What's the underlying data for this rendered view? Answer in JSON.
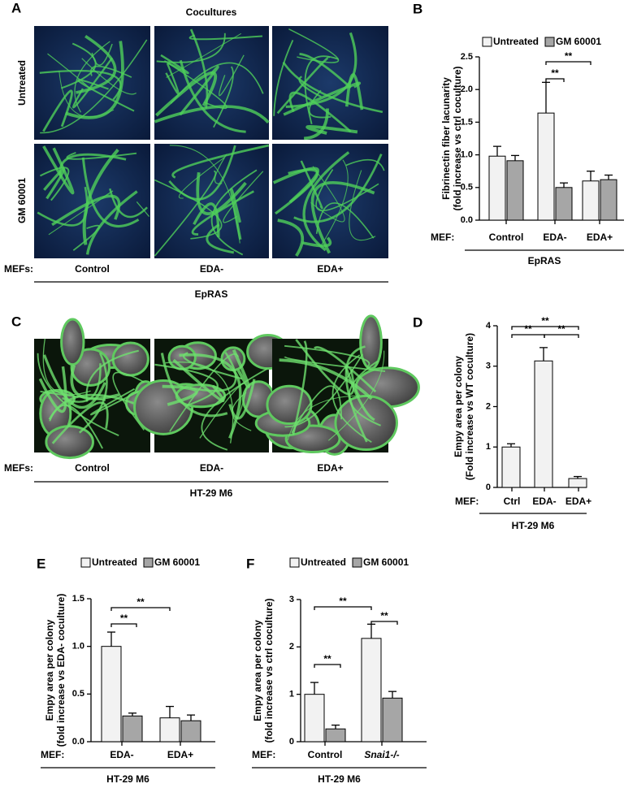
{
  "panel_a": {
    "letter": "A",
    "title": "Cocultures",
    "rows": [
      "Untreated",
      "GM 60001"
    ],
    "xlabel": "MEFs:",
    "columns": [
      "Control",
      "EDA-",
      "EDA+"
    ],
    "group": "EpRAS"
  },
  "panel_c": {
    "letter": "C",
    "xlabel": "MEFs:",
    "columns": [
      "Control",
      "EDA-",
      "EDA+"
    ],
    "group": "HT-29 M6"
  },
  "chart_data": [
    {
      "type": "bar",
      "letter": "B",
      "ylabel": [
        "Fibrinectin fiber lacunarity",
        "(fold increase vs ctrl coculture)"
      ],
      "xlabel": "MEF:",
      "categories": [
        "Control",
        "EDA-",
        "EDA+"
      ],
      "group": "EpRAS",
      "series": [
        {
          "name": "Untreated",
          "color": "#f2f2f2",
          "values": [
            0.98,
            1.64,
            0.6
          ],
          "errors": [
            0.15,
            0.47,
            0.15
          ]
        },
        {
          "name": "GM 60001",
          "color": "#a6a6a6",
          "values": [
            0.91,
            0.5,
            0.62
          ],
          "errors": [
            0.08,
            0.07,
            0.07
          ]
        }
      ],
      "ylim": [
        0,
        2.5
      ],
      "yticks": [
        {
          "value": 0,
          "label": "0.0"
        },
        0.5,
        {
          "value": 1,
          "label": "1.0"
        },
        1.5,
        {
          "value": 2,
          "label": "2.0"
        },
        2.5
      ],
      "annotations": [
        "**",
        "**"
      ]
    },
    {
      "type": "bar",
      "letter": "D",
      "ylabel": [
        "Empy area per colony",
        "(Fold increase vs WT coculture)"
      ],
      "xlabel": "MEF:",
      "categories": [
        "Ctrl",
        "EDA-",
        "EDA+"
      ],
      "group": "HT-29 M6",
      "series": [
        {
          "color": "#f2f2f2",
          "values": [
            1.0,
            3.13,
            0.22
          ],
          "errors": [
            0.08,
            0.33,
            0.05
          ]
        }
      ],
      "ylim": [
        0,
        4
      ],
      "yticks": [
        0,
        1,
        2,
        3,
        4
      ],
      "annotations": [
        "**",
        "**",
        "**"
      ]
    },
    {
      "type": "bar",
      "letter": "E",
      "ylabel": [
        "Empy area per colony",
        "(fold increase vs EDA- coculture)"
      ],
      "xlabel": "MEF:",
      "categories": [
        "EDA-",
        "EDA+"
      ],
      "group": "HT-29 M6",
      "series": [
        {
          "name": "Untreated",
          "color": "#f2f2f2",
          "values": [
            1.0,
            0.25
          ],
          "errors": [
            0.15,
            0.12
          ]
        },
        {
          "name": "GM 60001",
          "color": "#a6a6a6",
          "values": [
            0.27,
            0.22
          ],
          "errors": [
            0.03,
            0.06
          ]
        }
      ],
      "ylim": [
        0,
        1.5
      ],
      "yticks": [
        {
          "value": 0,
          "label": "0.0"
        },
        0.5,
        {
          "value": 1,
          "label": "1.0"
        },
        1.5
      ],
      "annotations": [
        "**",
        "**"
      ]
    },
    {
      "type": "bar",
      "letter": "F",
      "ylabel": [
        "Empy area per colony",
        "(fold increase vs ctrl coculture)"
      ],
      "xlabel": "MEF:",
      "categories": [
        "Control",
        "Snai1-/-"
      ],
      "group": "HT-29 M6",
      "series": [
        {
          "name": "Untreated",
          "color": "#f2f2f2",
          "values": [
            1.0,
            2.18
          ],
          "errors": [
            0.25,
            0.3
          ]
        },
        {
          "name": "GM 60001",
          "color": "#a6a6a6",
          "values": [
            0.27,
            0.92
          ],
          "errors": [
            0.08,
            0.14
          ]
        }
      ],
      "ylim": [
        0,
        3
      ],
      "yticks": [
        0,
        1,
        2,
        3
      ],
      "annotations": [
        "**",
        "**",
        "**"
      ]
    }
  ]
}
